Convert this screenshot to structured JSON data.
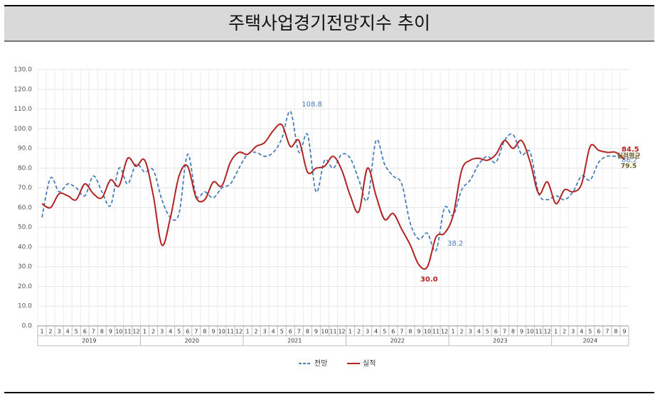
{
  "chart_data": {
    "type": "line",
    "title": "주택사업경기전망지수 추이",
    "categories": [
      "1",
      "2",
      "3",
      "4",
      "5",
      "6",
      "7",
      "8",
      "9",
      "10",
      "11",
      "12",
      "1",
      "2",
      "3",
      "4",
      "5",
      "6",
      "7",
      "8",
      "9",
      "10",
      "11",
      "12",
      "1",
      "2",
      "3",
      "4",
      "5",
      "6",
      "7",
      "8",
      "9",
      "10",
      "11",
      "12",
      "1",
      "2",
      "3",
      "4",
      "5",
      "6",
      "7",
      "8",
      "9",
      "10",
      "11",
      "12",
      "1",
      "2",
      "3",
      "4",
      "5",
      "6",
      "7",
      "8",
      "9",
      "10",
      "11",
      "12",
      "1",
      "2",
      "3",
      "4",
      "5",
      "6",
      "7",
      "8",
      "9"
    ],
    "years": [
      "2019",
      "2020",
      "2021",
      "2022",
      "2023",
      "2024"
    ],
    "ylim": [
      0,
      130
    ],
    "yticks": [
      {
        "value": 0,
        "label": "0.0"
      },
      {
        "value": 10,
        "label": "10.0"
      },
      {
        "value": 20,
        "label": "20.0"
      },
      {
        "value": 30,
        "label": "30.0"
      },
      {
        "value": 40,
        "label": "40.0"
      },
      {
        "value": 50,
        "label": "50.0"
      },
      {
        "value": 60,
        "label": "60.0"
      },
      {
        "value": 70,
        "label": "70.0"
      },
      {
        "value": 80,
        "label": "80.0"
      },
      {
        "value": 90,
        "label": "90.0"
      },
      {
        "value": 100,
        "label": "100.0"
      },
      {
        "value": 110,
        "label": "110.0"
      },
      {
        "value": 120,
        "label": "120.0"
      },
      {
        "value": 130,
        "label": "130.0"
      }
    ],
    "grid": true,
    "series": [
      {
        "name": "전망",
        "color": "#4a7ebb",
        "dash": true,
        "values": [
          55,
          75,
          68,
          72,
          70,
          66,
          76,
          68,
          61,
          80,
          72,
          82,
          78,
          79,
          64,
          55,
          57,
          87,
          66,
          68,
          65,
          70,
          72,
          80,
          87,
          88,
          86,
          88,
          95,
          108.8,
          88,
          97,
          68,
          84,
          80,
          87,
          85,
          74,
          64,
          94,
          82,
          76,
          72,
          52,
          44,
          47,
          38.2,
          60,
          56,
          69,
          74,
          82,
          86,
          83,
          94,
          97,
          87,
          88,
          67,
          64,
          66,
          64,
          68,
          76,
          74,
          83,
          86,
          86,
          86.2
        ],
        "value_labels": [
          null,
          null,
          null,
          null,
          null,
          null,
          null,
          null,
          null,
          null,
          null,
          null,
          null,
          null,
          null,
          null,
          null,
          null,
          null,
          null,
          null,
          null,
          null,
          null,
          null,
          null,
          null,
          null,
          null,
          "108.8",
          null,
          null,
          null,
          null,
          null,
          null,
          null,
          null,
          null,
          null,
          null,
          null,
          null,
          null,
          null,
          null,
          "38.2",
          null,
          null,
          null,
          null,
          null,
          null,
          null,
          null,
          null,
          null,
          null,
          null,
          null,
          null,
          null,
          null,
          null,
          null,
          null,
          null,
          null,
          "86.2"
        ]
      },
      {
        "name": "실적",
        "color": "#b22222",
        "dash": false,
        "values": [
          62,
          60,
          67,
          66,
          64,
          72,
          67,
          65,
          74,
          71,
          85,
          81,
          84,
          66,
          41,
          55,
          76,
          81,
          65,
          64,
          73,
          71,
          83,
          88,
          87,
          91,
          93,
          99,
          102,
          91,
          94,
          78,
          80,
          81,
          86,
          79,
          66,
          58,
          80,
          66,
          54,
          57,
          49,
          41,
          31,
          30.0,
          45,
          47,
          56,
          79,
          84,
          85,
          84,
          87,
          94,
          90,
          94,
          83,
          67,
          73,
          62,
          69,
          68,
          72,
          91,
          89,
          88,
          88,
          84.5
        ],
        "value_labels": [
          null,
          null,
          null,
          null,
          null,
          null,
          null,
          null,
          null,
          null,
          null,
          null,
          null,
          null,
          null,
          null,
          null,
          null,
          null,
          null,
          null,
          null,
          null,
          null,
          null,
          null,
          null,
          null,
          null,
          null,
          null,
          null,
          null,
          null,
          null,
          null,
          null,
          null,
          null,
          null,
          null,
          null,
          null,
          null,
          null,
          "30.0",
          null,
          null,
          null,
          null,
          null,
          null,
          null,
          null,
          null,
          null,
          null,
          null,
          null,
          null,
          null,
          null,
          null,
          null,
          null,
          null,
          null,
          null,
          "84.5"
        ]
      }
    ],
    "annotations": [
      {
        "label": "실적평균",
        "value": 79.5
      }
    ]
  }
}
